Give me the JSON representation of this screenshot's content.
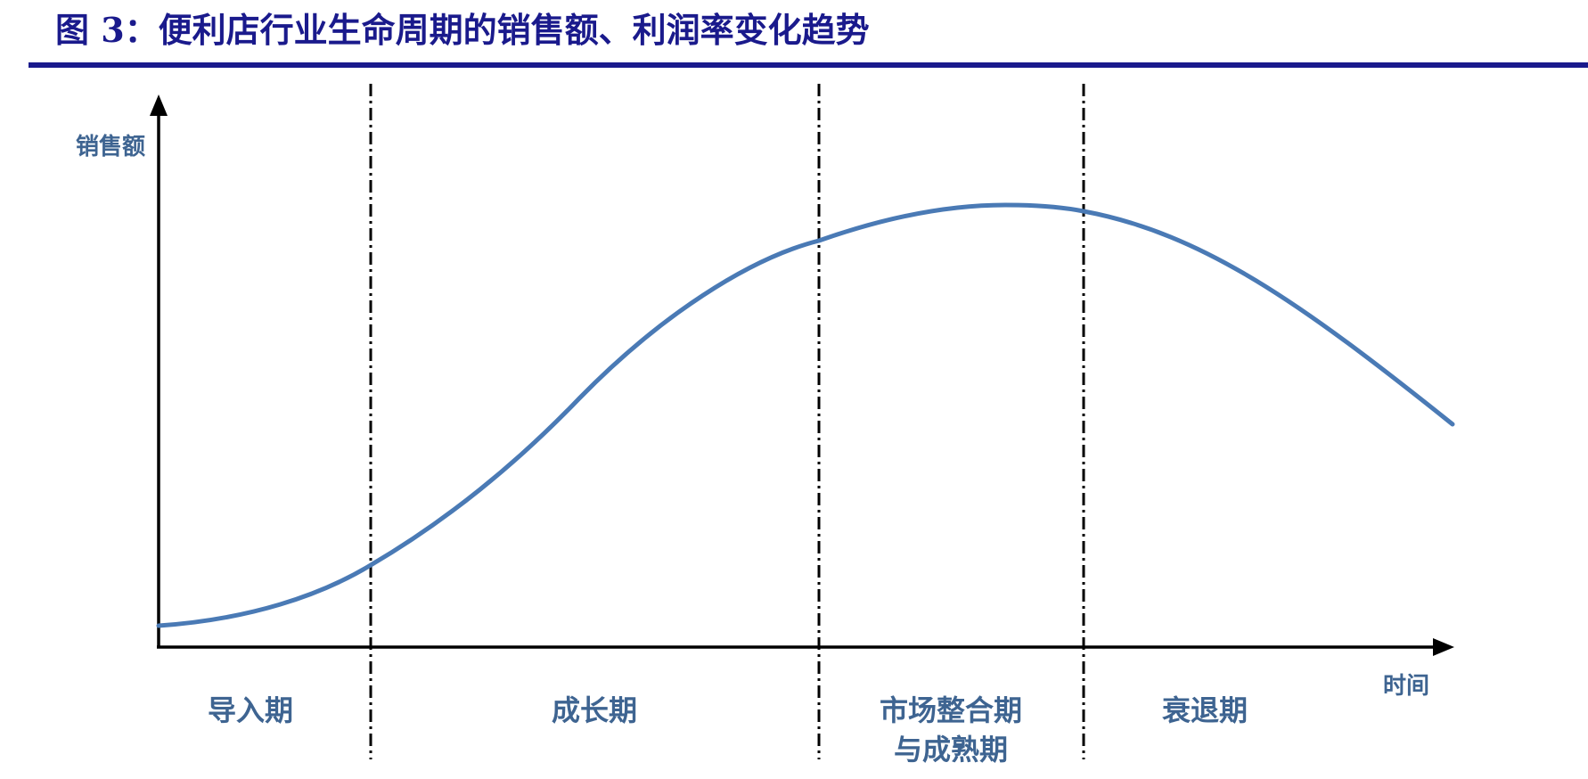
{
  "title": "图 3：便利店行业生命周期的销售额、利润率变化趋势",
  "axes": {
    "y_label": "销售额",
    "x_label": "时间"
  },
  "stages": [
    {
      "lines": [
        "导入期"
      ]
    },
    {
      "lines": [
        "成长期"
      ]
    },
    {
      "lines": [
        "市场整合期",
        "与成熟期"
      ]
    },
    {
      "lines": [
        "衰退期"
      ]
    }
  ],
  "colors": {
    "title": "#1a1a8c",
    "curve": "#4a7ab5",
    "label": "#3e6491",
    "axis": "#000000"
  }
}
